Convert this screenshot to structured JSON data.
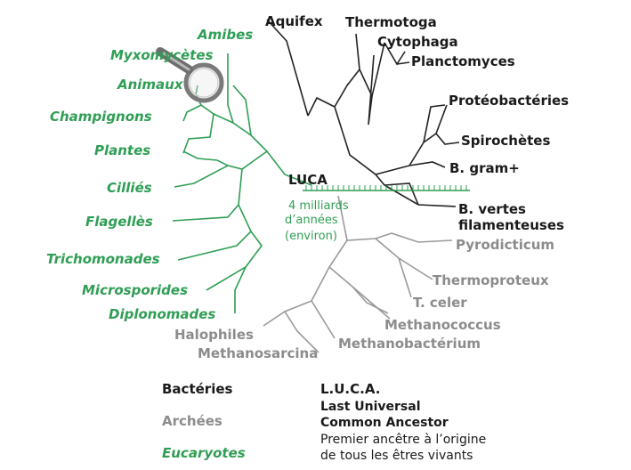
{
  "root": {
    "name": "LUCA",
    "age_label": [
      "4 milliards",
      "d’années",
      "(environ)"
    ]
  },
  "domains": {
    "bacteria": {
      "color": "#1a1a1a",
      "taxa": [
        "Aquifex",
        "Thermotoga",
        "Cytophaga",
        "Planctomyces",
        "Protéobactéries",
        "Spirochètes",
        "B. gram+",
        "B. vertes",
        "filamenteuses"
      ]
    },
    "archaea": {
      "color": "#8c8c8c",
      "taxa": [
        "Pyrodicticum",
        "Thermoproteux",
        "T. celer",
        "Methanococcus",
        "Methanobactérium",
        "Halophiles",
        "Methanosarcina"
      ]
    },
    "eukaryotes": {
      "color": "#2f9e55",
      "taxa": [
        "Amibes",
        "Myxomycètes",
        "Animaux",
        "Champignons",
        "Plantes",
        "Cilliés",
        "Flagellès",
        "Trichomonades",
        "Microsporides",
        "Diplonomades"
      ]
    }
  },
  "legend": {
    "keys": [
      "Bactéries",
      "Archées",
      "Eucaryotes"
    ],
    "luca_title": "L.U.C.A.",
    "luca_lines": [
      "Last Universal",
      "Common Ancestor",
      "Premier ancêtre à l’origine",
      "de tous les êtres vivants"
    ]
  },
  "icons": {
    "magnifier": "magnifying-glass-icon"
  },
  "colors": {
    "bacteria": "#1a1a1a",
    "archaea": "#8c8c8c",
    "eukaryotes": "#2f9e55"
  }
}
